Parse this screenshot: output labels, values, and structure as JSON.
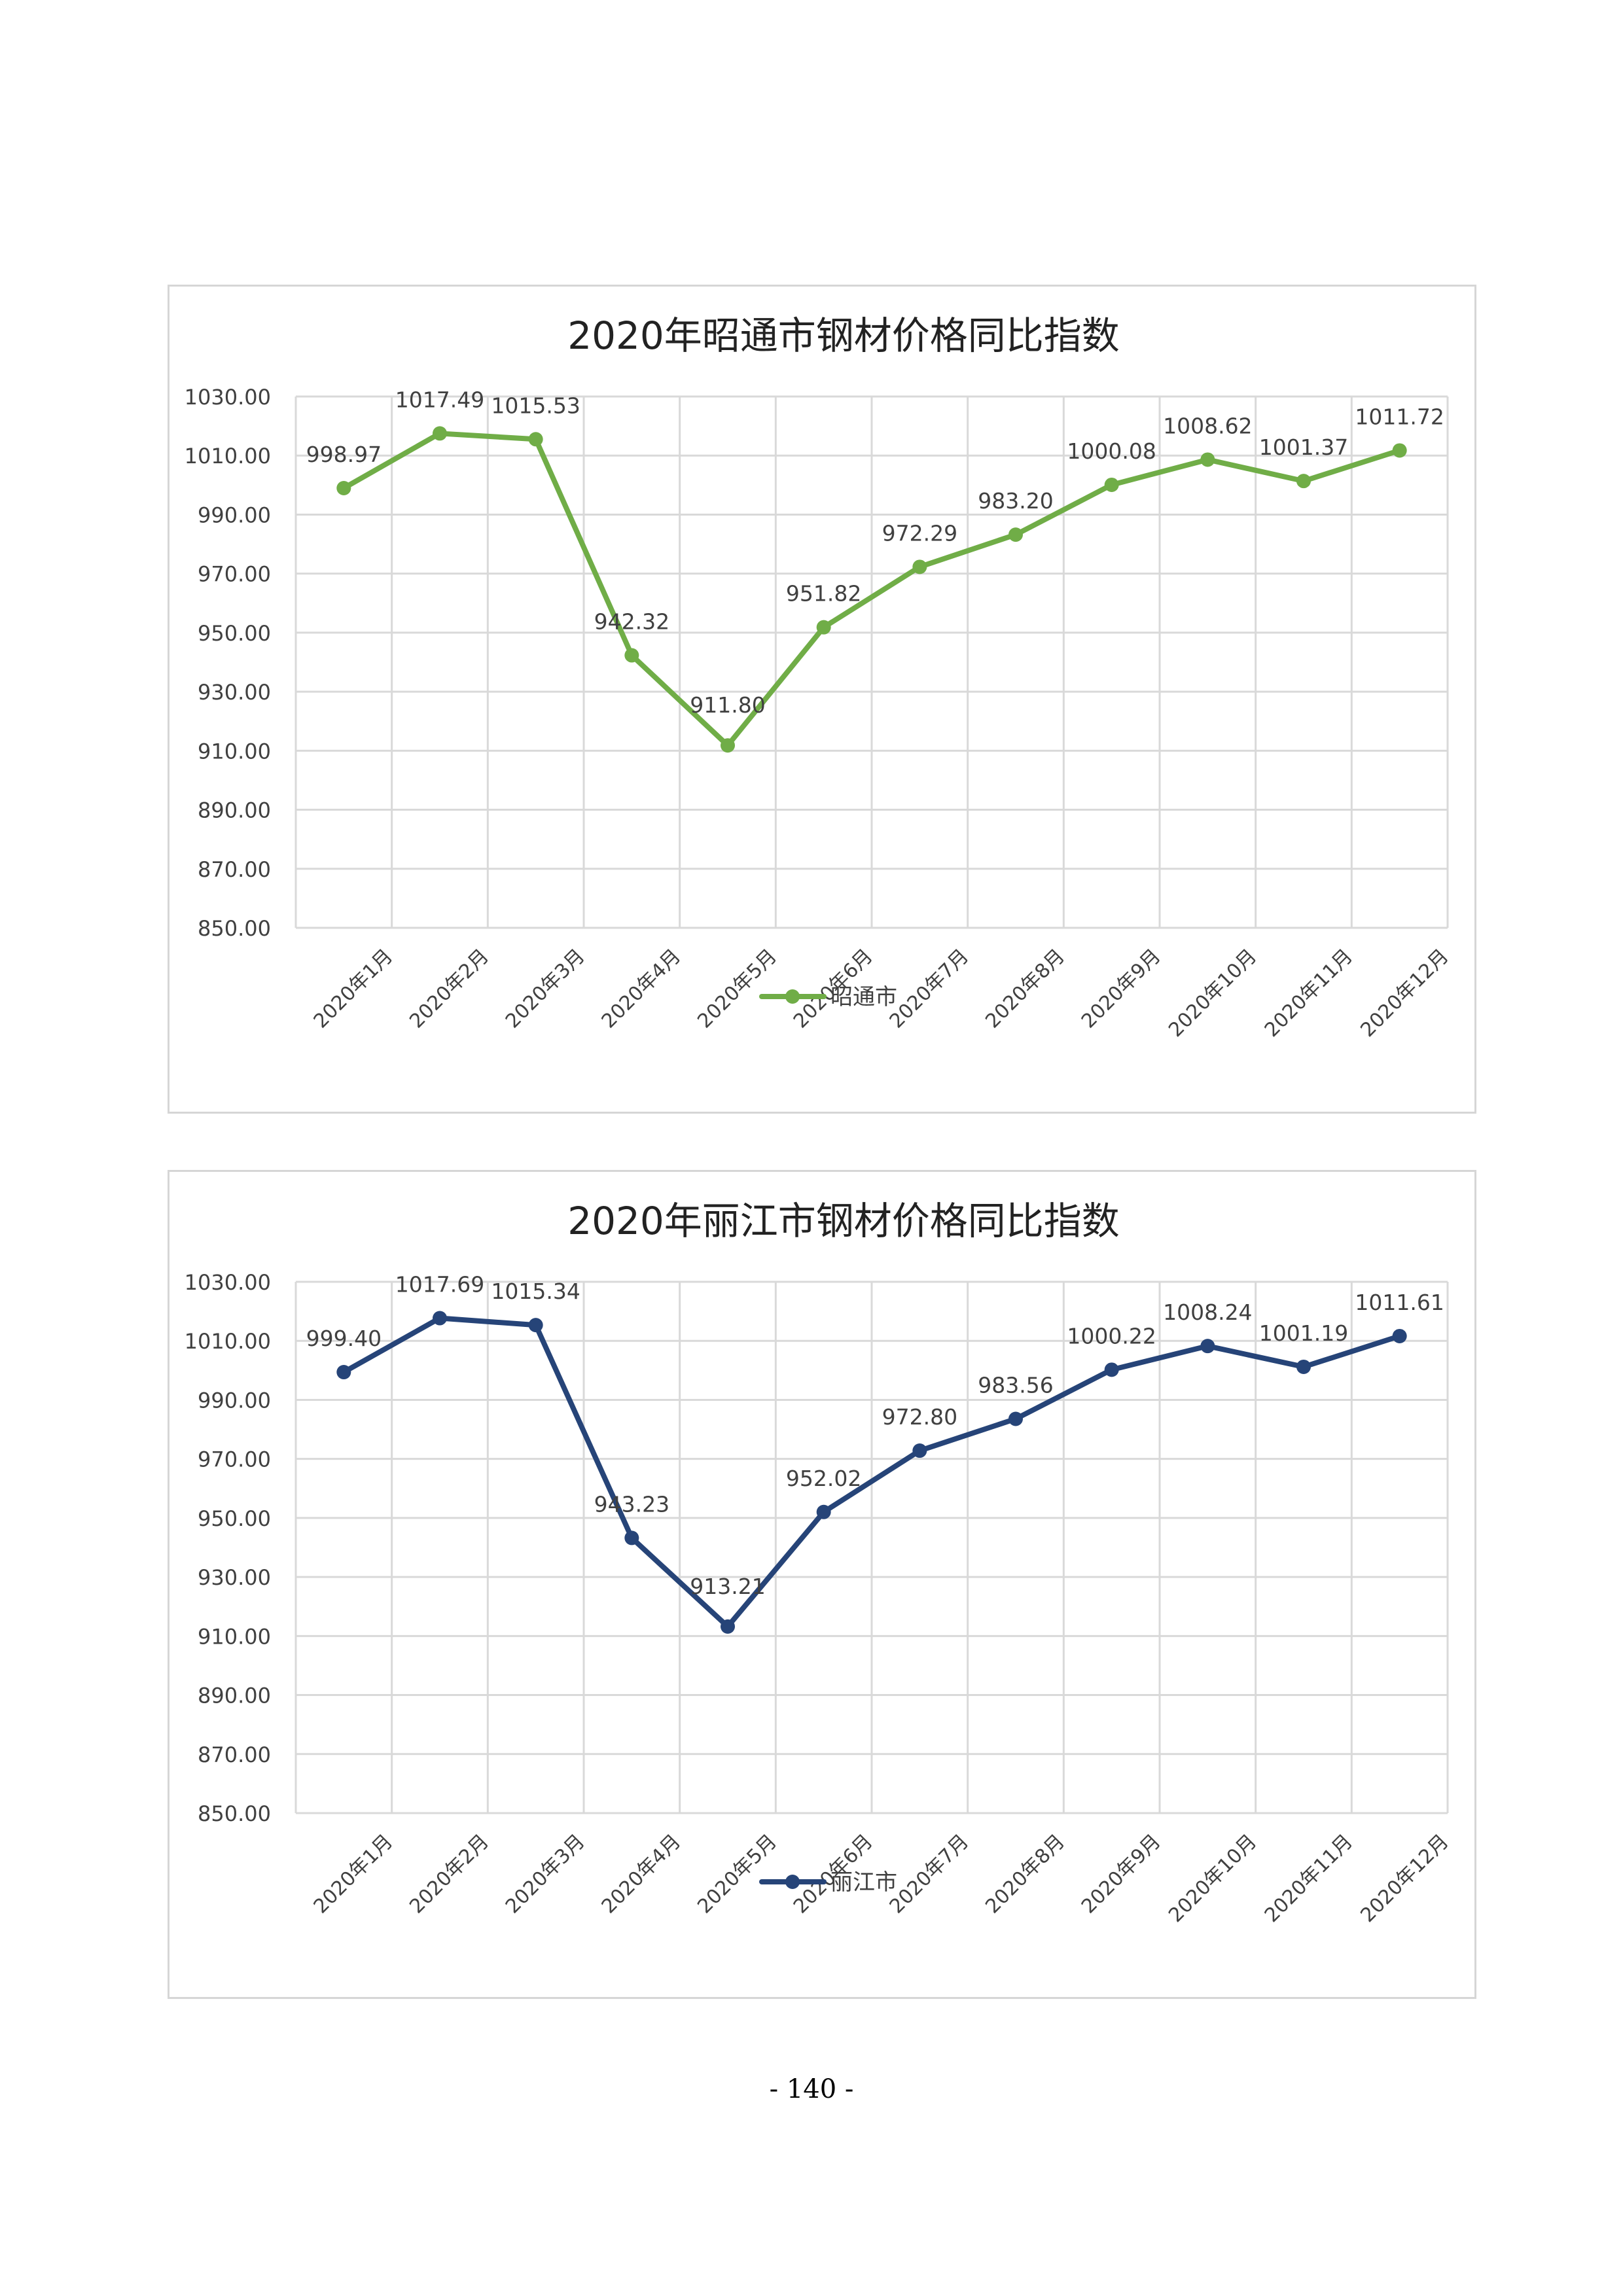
{
  "page": {
    "number": "- 140 -"
  },
  "chart_data": [
    {
      "type": "line",
      "title": "2020年昭通市钢材价格同比指数",
      "categories": [
        "2020年1月",
        "2020年2月",
        "2020年3月",
        "2020年4月",
        "2020年5月",
        "2020年6月",
        "2020年7月",
        "2020年8月",
        "2020年9月",
        "2020年10月",
        "2020年11月",
        "2020年12月"
      ],
      "series": [
        {
          "name": "昭通市",
          "color": "#70ad47",
          "values": [
            998.97,
            1017.49,
            1015.53,
            942.32,
            911.8,
            951.82,
            972.29,
            983.2,
            1000.08,
            1008.62,
            1001.37,
            1011.72
          ],
          "labels": [
            "998.97",
            "1017.49",
            "1015.53",
            "942.32",
            "911.80",
            "951.82",
            "972.29",
            "983.20",
            "1000.08",
            "1008.62",
            "1001.37",
            "1011.72"
          ]
        }
      ],
      "ylim": [
        850,
        1030
      ],
      "yticks": [
        "850.00",
        "870.00",
        "890.00",
        "910.00",
        "930.00",
        "950.00",
        "970.00",
        "990.00",
        "1010.00",
        "1030.00"
      ],
      "xlabel": "",
      "ylabel": "",
      "grid": true,
      "legend": "bottom"
    },
    {
      "type": "line",
      "title": "2020年丽江市钢材价格同比指数",
      "categories": [
        "2020年1月",
        "2020年2月",
        "2020年3月",
        "2020年4月",
        "2020年5月",
        "2020年6月",
        "2020年7月",
        "2020年8月",
        "2020年9月",
        "2020年10月",
        "2020年11月",
        "2020年12月"
      ],
      "series": [
        {
          "name": "丽江市",
          "color": "#264478",
          "values": [
            999.4,
            1017.69,
            1015.34,
            943.23,
            913.21,
            952.02,
            972.8,
            983.56,
            1000.22,
            1008.24,
            1001.19,
            1011.61
          ],
          "labels": [
            "999.40",
            "1017.69",
            "1015.34",
            "943.23",
            "913.21",
            "952.02",
            "972.80",
            "983.56",
            "1000.22",
            "1008.24",
            "1001.19",
            "1011.61"
          ]
        }
      ],
      "ylim": [
        850,
        1030
      ],
      "yticks": [
        "850.00",
        "870.00",
        "890.00",
        "910.00",
        "930.00",
        "950.00",
        "970.00",
        "990.00",
        "1010.00",
        "1030.00"
      ],
      "xlabel": "",
      "ylabel": "",
      "grid": true,
      "legend": "bottom"
    }
  ]
}
